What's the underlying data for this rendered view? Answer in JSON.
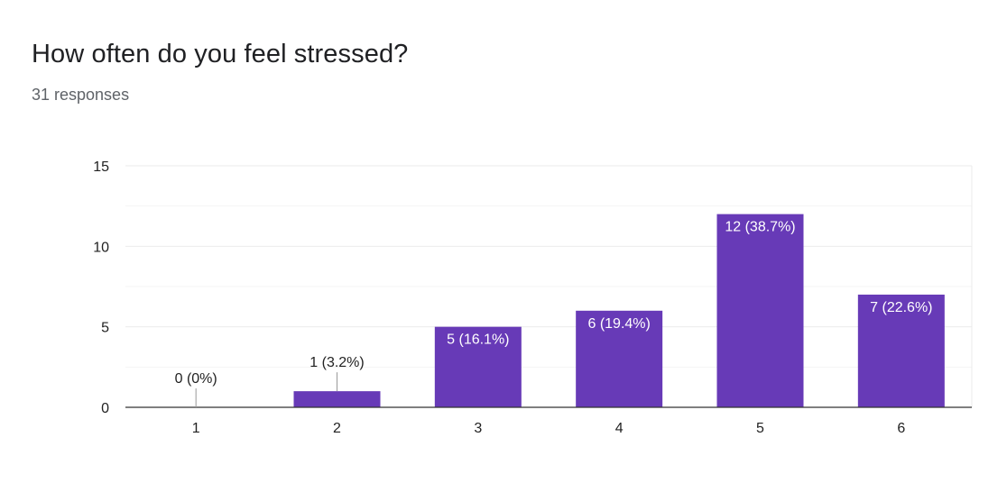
{
  "header": {
    "title": "How often do you feel stressed?",
    "subtitle": "31 responses"
  },
  "chart_data": {
    "type": "bar",
    "title": "How often do you feel stressed?",
    "xlabel": "",
    "ylabel": "",
    "categories": [
      "1",
      "2",
      "3",
      "4",
      "5",
      "6"
    ],
    "values": [
      0,
      1,
      5,
      6,
      12,
      7
    ],
    "data_labels": [
      "0 (0%)",
      "1 (3.2%)",
      "5 (16.1%)",
      "6 (19.4%)",
      "12 (38.7%)",
      "7 (22.6%)"
    ],
    "ylim": [
      0,
      15
    ],
    "yticks": [
      0,
      5,
      10,
      15
    ],
    "grid": true,
    "legend": "none",
    "colors": {
      "bar": "#673ab7",
      "grid": "#ebebeb",
      "minor_grid": "#f5f5f5",
      "axis": "#333333",
      "label_inside": "#ffffff",
      "label_outside": "#222222"
    }
  }
}
